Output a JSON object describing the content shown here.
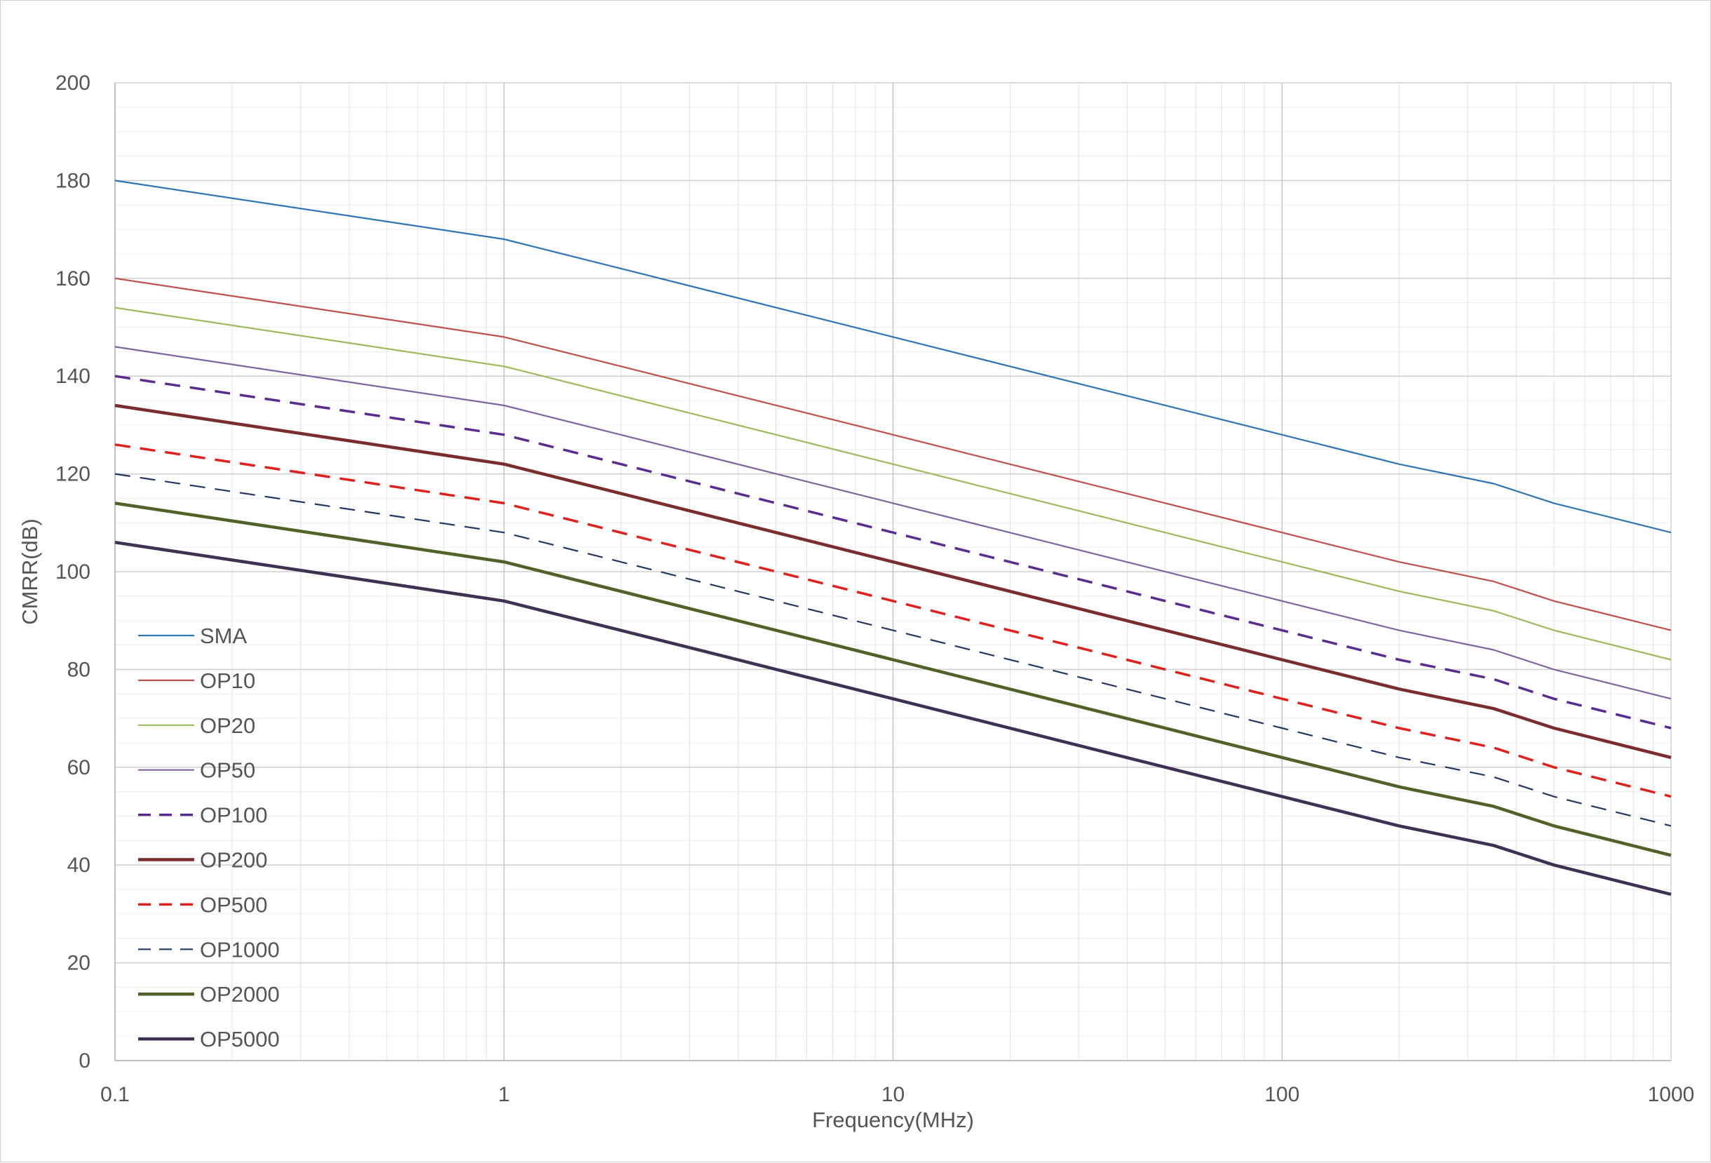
{
  "chart_data": {
    "type": "line",
    "xlabel": "Frequency(MHz)",
    "ylabel": "CMRR(dB)",
    "x_scale": "log",
    "xlim": [
      0.1,
      1000
    ],
    "ylim": [
      0,
      200
    ],
    "x_ticks": [
      "0.1",
      "1",
      "10",
      "100",
      "1000"
    ],
    "y_ticks": [
      "0",
      "20",
      "40",
      "60",
      "80",
      "100",
      "120",
      "140",
      "160",
      "180",
      "200"
    ],
    "grid": true,
    "legend_position": "lower-left inside",
    "x": [
      0.1,
      1,
      10,
      100,
      200,
      350,
      500,
      1000
    ],
    "series": [
      {
        "name": "SMA",
        "values": [
          180,
          168,
          148,
          128,
          122,
          118,
          114,
          108
        ],
        "color": "#2E75B6",
        "dash": "solid",
        "weight": "thin"
      },
      {
        "name": "OP10",
        "values": [
          160,
          148,
          128,
          108,
          102,
          98,
          94,
          88
        ],
        "color": "#C0504D",
        "dash": "solid",
        "weight": "thin"
      },
      {
        "name": "OP20",
        "values": [
          154,
          142,
          122,
          102,
          96,
          92,
          88,
          82
        ],
        "color": "#9BBB59",
        "dash": "solid",
        "weight": "thin"
      },
      {
        "name": "OP50",
        "values": [
          146,
          134,
          114,
          94,
          88,
          84,
          80,
          74
        ],
        "color": "#8064A2",
        "dash": "solid",
        "weight": "thin"
      },
      {
        "name": "OP100",
        "values": [
          140,
          128,
          108,
          88,
          82,
          78,
          74,
          68
        ],
        "color": "#5B2C8F",
        "dash": "dashed",
        "weight": "medium"
      },
      {
        "name": "OP200",
        "values": [
          134,
          122,
          102,
          82,
          76,
          72,
          68,
          62
        ],
        "color": "#7B2C2C",
        "dash": "solid",
        "weight": "thick"
      },
      {
        "name": "OP500",
        "values": [
          126,
          114,
          94,
          74,
          68,
          64,
          60,
          54
        ],
        "color": "#E0201B",
        "dash": "dashed",
        "weight": "medium"
      },
      {
        "name": "OP1000",
        "values": [
          120,
          108,
          88,
          68,
          62,
          58,
          54,
          48
        ],
        "color": "#1F3864",
        "dash": "dashed",
        "weight": "thin"
      },
      {
        "name": "OP2000",
        "values": [
          114,
          102,
          82,
          62,
          56,
          52,
          48,
          42
        ],
        "color": "#4F6228",
        "dash": "solid",
        "weight": "thick"
      },
      {
        "name": "OP5000",
        "values": [
          106,
          94,
          74,
          54,
          48,
          44,
          40,
          34
        ],
        "color": "#3F3151",
        "dash": "solid",
        "weight": "thick"
      }
    ]
  }
}
